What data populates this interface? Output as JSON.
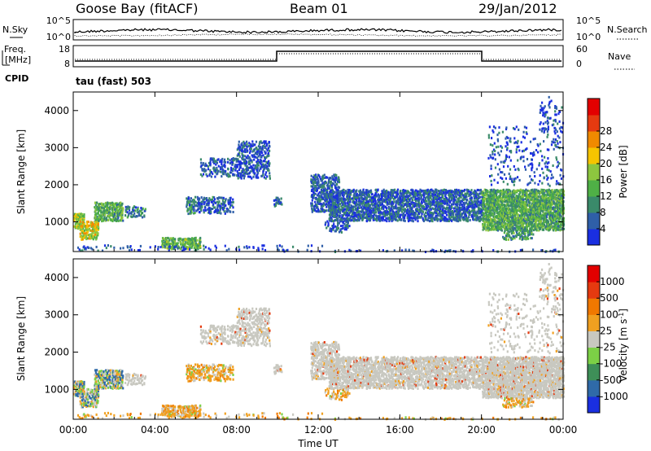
{
  "header": {
    "station": "Goose Bay (fitACF)",
    "beam": "Beam 01",
    "date": "29/Jan/2012"
  },
  "noise_panel": {
    "left_label": "N.Sky",
    "right_label": "N.Search",
    "left_ticks": [
      "10^5",
      "10^0"
    ],
    "right_ticks": [
      "10^5",
      "10^0"
    ]
  },
  "freq_panel": {
    "left_label_1": "Freq.",
    "left_label_2": "[MHz]",
    "right_label": "Nave",
    "left_ticks": [
      "18",
      "8"
    ],
    "right_ticks": [
      "60",
      "0"
    ]
  },
  "cpid": {
    "label": "CPID",
    "text": "tau (fast) 503"
  },
  "chart_data": [
    {
      "type": "heatmap",
      "title": "",
      "xlabel": "",
      "ylabel": "Slant Range [km]",
      "x_ticks": [
        "00:00",
        "04:00",
        "08:00",
        "12:00",
        "16:00",
        "20:00",
        "00:00"
      ],
      "y_ticks": [
        1000,
        2000,
        3000,
        4000
      ],
      "ylim": [
        200,
        4500
      ],
      "colorbar": {
        "label": "Power [dB]",
        "ticks": [
          4,
          8,
          12,
          16,
          20,
          24,
          28
        ],
        "colors": [
          "#1a2fe0",
          "#2f5fa8",
          "#3a8a6a",
          "#4fb046",
          "#8dc63f",
          "#f6c400",
          "#f08a00",
          "#e53a10",
          "#e30000"
        ]
      }
    },
    {
      "type": "heatmap",
      "title": "",
      "xlabel": "Time UT",
      "ylabel": "Slant Range [km]",
      "x_ticks": [
        "00:00",
        "04:00",
        "08:00",
        "12:00",
        "16:00",
        "20:00",
        "00:00"
      ],
      "y_ticks": [
        1000,
        2000,
        3000,
        4000
      ],
      "ylim": [
        200,
        4500
      ],
      "colorbar": {
        "label": "Velocity [m s^-1]",
        "ticks": [
          1000,
          500,
          100,
          25,
          -25,
          -100,
          -500,
          -1000
        ],
        "colors": [
          "#1a2fe0",
          "#2f6aa8",
          "#3e8f58",
          "#7cd046",
          "#c8c8c0",
          "#f0a020",
          "#f07800",
          "#e53a10",
          "#e30000"
        ]
      }
    }
  ]
}
